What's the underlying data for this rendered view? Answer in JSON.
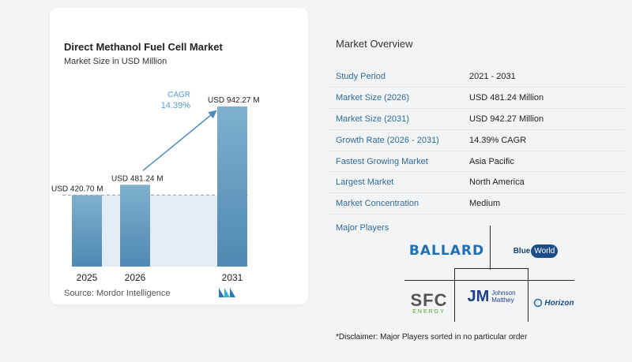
{
  "card": {
    "title": "Direct Methanol Fuel Cell Market",
    "subtitle": "Market Size in USD Million",
    "source": "Source: Mordor Intelligence"
  },
  "chart_data": {
    "type": "bar",
    "title": "Direct Methanol Fuel Cell Market",
    "subtitle": "Market Size in USD Million",
    "categories": [
      "2025",
      "2026",
      "2031"
    ],
    "values": [
      420.7,
      481.24,
      942.27
    ],
    "labels": [
      "USD 420.70 M",
      "USD 481.24 M",
      "USD 942.27 M"
    ],
    "cagr_label": "CAGR",
    "cagr_value": "14.39%",
    "ylim": [
      0,
      1000
    ],
    "colors": {
      "bar_top": "#7fb0cf",
      "bar_bottom": "#4f88b2",
      "band": "#e3ecf3",
      "arrow": "#4d8dbb",
      "cagr_text": "#5b9bc7"
    }
  },
  "overview": {
    "title": "Market Overview",
    "rows": [
      {
        "key": "Study Period",
        "value": "2021 - 2031"
      },
      {
        "key": "Market Size (2026)",
        "value": "USD 481.24 Million"
      },
      {
        "key": "Market Size (2031)",
        "value": "USD 942.27 Million"
      },
      {
        "key": "Growth Rate (2026 - 2031)",
        "value": "14.39% CAGR"
      },
      {
        "key": "Fastest Growing Market",
        "value": "Asia Pacific"
      },
      {
        "key": "Largest Market",
        "value": "North America"
      },
      {
        "key": "Market Concentration",
        "value": "Medium"
      }
    ],
    "major_players_title": "Major Players",
    "players": {
      "ballard": "BALLARD",
      "blueworld_a": "Blue",
      "blueworld_b": "World",
      "sfc_a": "SFC",
      "sfc_b": "ENERGY",
      "jm_a": "JM",
      "jm_b": "Johnson",
      "jm_c": "Matthey",
      "horizon": "Horizon"
    },
    "disclaimer": "*Disclaimer: Major Players sorted in no particular order"
  }
}
